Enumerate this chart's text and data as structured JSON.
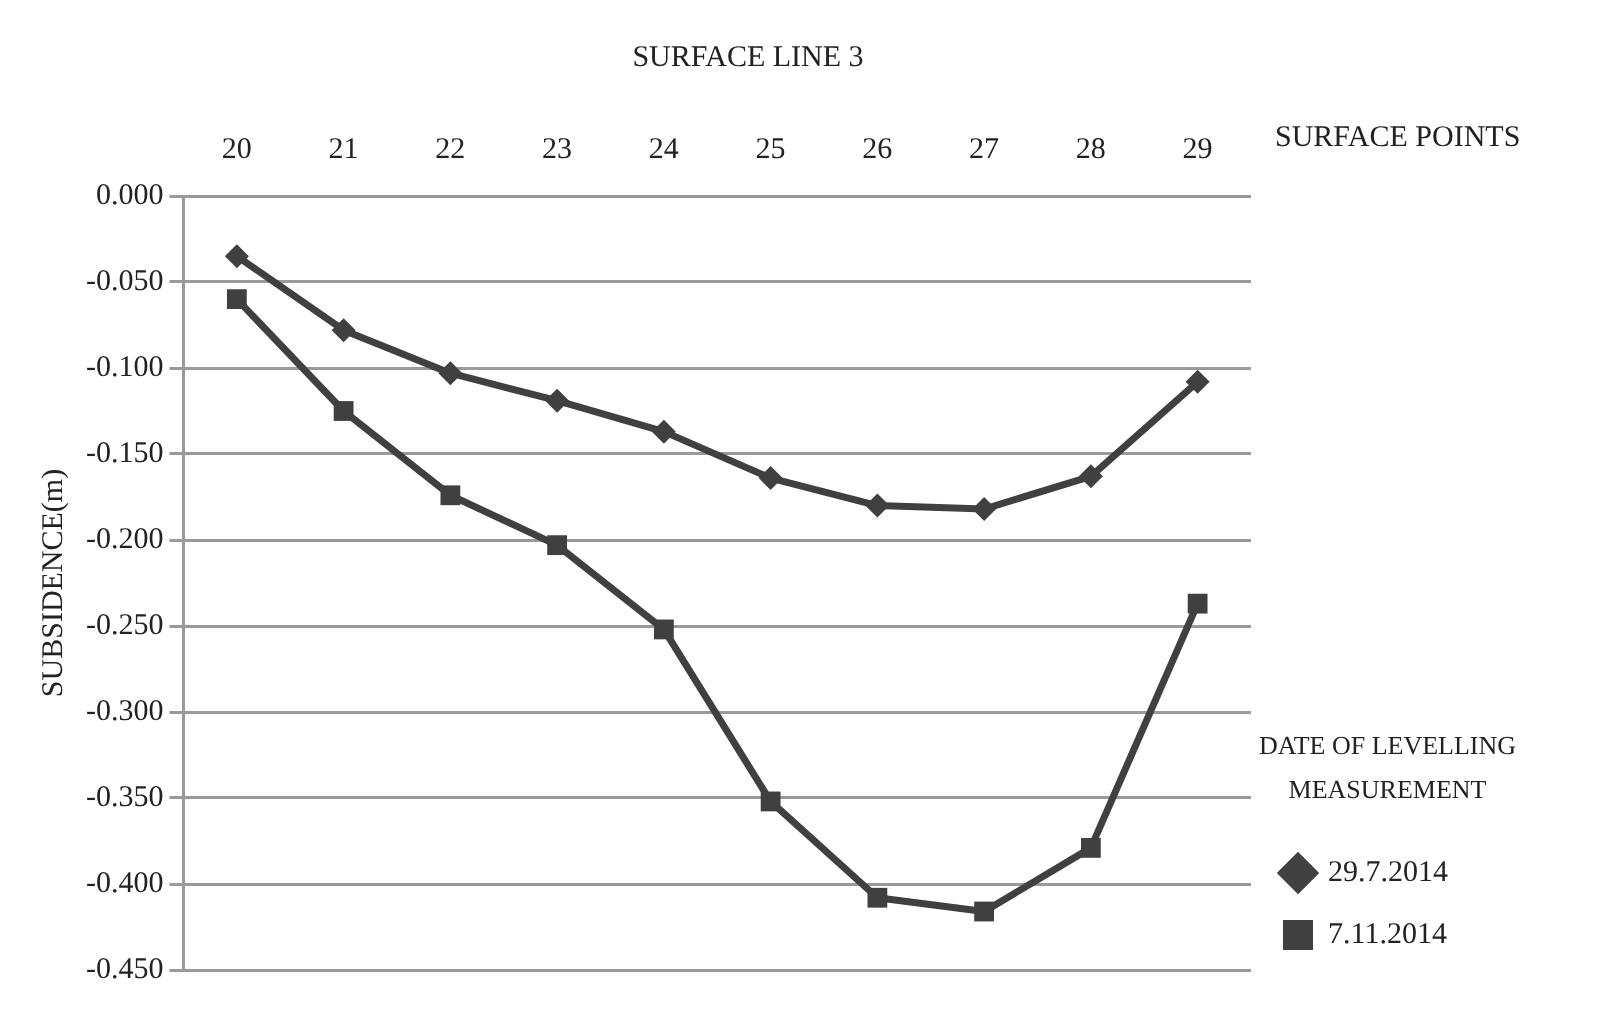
{
  "chart_data": {
    "type": "line",
    "title": "SURFACE LINE 3",
    "xlabel": "SURFACE POINTS",
    "ylabel": "SUBSIDENCE(m)",
    "legend_title": "DATE OF LEVELLING MEASUREMENT",
    "categories": [
      "20",
      "21",
      "22",
      "23",
      "24",
      "25",
      "26",
      "27",
      "28",
      "29"
    ],
    "series": [
      {
        "name": "29.7.2014",
        "color": "#404040",
        "marker": "diamond",
        "values": [
          -0.035,
          -0.078,
          -0.103,
          -0.119,
          -0.137,
          -0.164,
          -0.18,
          -0.182,
          -0.163,
          -0.108
        ]
      },
      {
        "name": "7.11.2014",
        "color": "#404040",
        "marker": "square",
        "values": [
          -0.06,
          -0.125,
          -0.174,
          -0.203,
          -0.252,
          -0.352,
          -0.408,
          -0.416,
          -0.379,
          -0.237
        ]
      }
    ],
    "ylim": [
      -0.45,
      0
    ],
    "yticks": [
      {
        "value": 0,
        "label": "0.000"
      },
      {
        "value": -0.05,
        "label": "-0.050"
      },
      {
        "value": -0.1,
        "label": "-0.100"
      },
      {
        "value": -0.15,
        "label": "-0.150"
      },
      {
        "value": -0.2,
        "label": "-0.200"
      },
      {
        "value": -0.25,
        "label": "-0.250"
      },
      {
        "value": -0.3,
        "label": "-0.300"
      },
      {
        "value": -0.35,
        "label": "-0.350"
      },
      {
        "value": -0.4,
        "label": "-0.400"
      },
      {
        "value": -0.45,
        "label": "-0.450"
      }
    ],
    "grid": "y",
    "legend": "right",
    "line_style": "solid"
  }
}
